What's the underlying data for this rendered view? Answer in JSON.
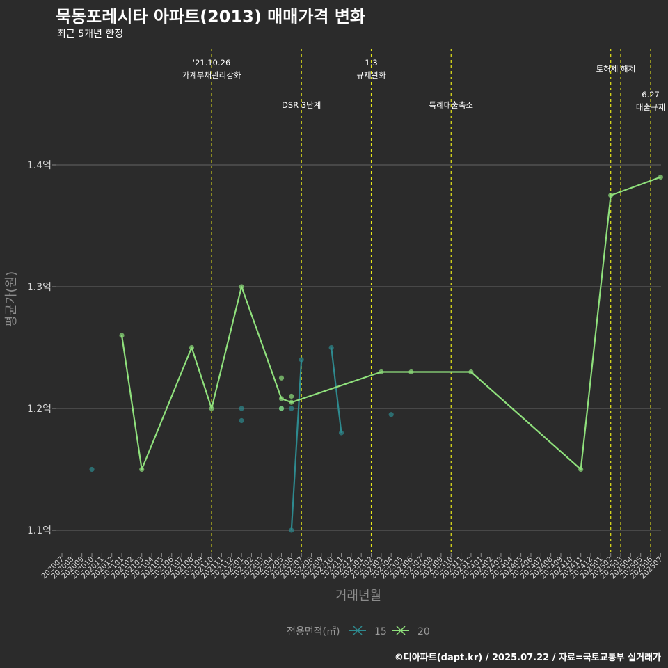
{
  "title": "묵동포레시타 아파트(2013) 매매가격 변화",
  "subtitle": "최근 5개년 한정",
  "caption": "©디아파트(dapt.kr) / 2025.07.22 / 자료=국토교통부 실거래가",
  "chart_data": {
    "type": "line",
    "xlabel": "거래년월",
    "ylabel": "평균가(원)",
    "ylim": [
      1.08,
      1.425
    ],
    "y_ticks": [
      {
        "value": 1.1,
        "label": "1.1억"
      },
      {
        "value": 1.2,
        "label": "1.2억"
      },
      {
        "value": 1.3,
        "label": "1.3억"
      },
      {
        "value": 1.4,
        "label": "1.4억"
      }
    ],
    "categories": [
      "202007",
      "202008",
      "202009",
      "202010",
      "202011",
      "202012",
      "202101",
      "202102",
      "202103",
      "202104",
      "202105",
      "202106",
      "202107",
      "202108",
      "202109",
      "202110",
      "202111",
      "202112",
      "202201",
      "202202",
      "202203",
      "202204",
      "202205",
      "202206",
      "202207",
      "202208",
      "202209",
      "202210",
      "202211",
      "202212",
      "202301",
      "202302",
      "202303",
      "202304",
      "202305",
      "202306",
      "202307",
      "202308",
      "202309",
      "202310",
      "202311",
      "202312",
      "202401",
      "202402",
      "202403",
      "202404",
      "202405",
      "202406",
      "202407",
      "202408",
      "202409",
      "202410",
      "202411",
      "202412",
      "202501",
      "202502",
      "202503",
      "202504",
      "202505",
      "202506",
      "202507"
    ],
    "legend": {
      "title": "전용면적(㎡)",
      "position": "bottom"
    },
    "grid": true,
    "series": [
      {
        "name": "15",
        "color": "#2e8a8f",
        "line": [
          [
            "202206",
            1.1
          ],
          [
            "202207",
            1.24
          ]
        ],
        "line2": [
          [
            "202210",
            1.25
          ],
          [
            "202211",
            1.18
          ]
        ],
        "points": [
          [
            "202010",
            1.15
          ],
          [
            "202201",
            1.2
          ],
          [
            "202201",
            1.19
          ],
          [
            "202205",
            1.2
          ],
          [
            "202206",
            1.2
          ],
          [
            "202304",
            1.195
          ],
          [
            "202206",
            1.1
          ],
          [
            "202207",
            1.24
          ],
          [
            "202210",
            1.25
          ],
          [
            "202211",
            1.18
          ]
        ]
      },
      {
        "name": "20",
        "color": "#8fe07c",
        "line": [
          [
            "202101",
            1.26
          ],
          [
            "202103",
            1.15
          ],
          [
            "202108",
            1.25
          ],
          [
            "202110",
            1.2
          ],
          [
            "202201",
            1.3
          ],
          [
            "202205",
            1.208
          ],
          [
            "202206",
            1.205
          ],
          [
            "202303",
            1.23
          ],
          [
            "202306",
            1.23
          ],
          [
            "202312",
            1.23
          ],
          [
            "202411",
            1.15
          ],
          [
            "202502",
            1.375
          ],
          [
            "202507",
            1.39
          ]
        ],
        "points": [
          [
            "202205",
            1.225
          ],
          [
            "202206",
            1.21
          ],
          [
            "202205",
            1.2
          ]
        ]
      }
    ],
    "annotations": [
      {
        "x": "202110",
        "lines": [
          "'21.10.26",
          "가계부채관리강화"
        ],
        "row": 1
      },
      {
        "x": "202207",
        "lines": [
          "DSR 3단계"
        ],
        "row": 2
      },
      {
        "x": "202302",
        "lines": [
          "1.3",
          "규제완화"
        ],
        "row": 1
      },
      {
        "x": "202310",
        "lines": [
          "특례대출축소"
        ],
        "row": 2
      },
      {
        "x": "202502",
        "lines": [],
        "row": 1
      },
      {
        "x": "202503",
        "lines": [
          "토허제 해제"
        ],
        "row": 1,
        "center_offset": -0.5
      },
      {
        "x": "202506",
        "lines": [
          "6.27",
          "대출규제"
        ],
        "row": 2
      }
    ]
  }
}
